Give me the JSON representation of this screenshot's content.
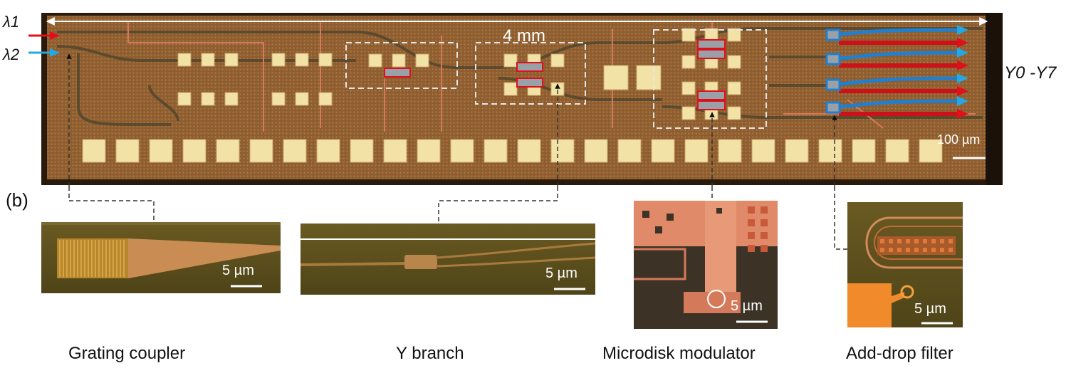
{
  "figure": {
    "input_labels": [
      "λ1",
      "λ2"
    ],
    "length_label": "4 mm",
    "output_label": "Y0 -Y7",
    "chip_scale": "100 µm",
    "panel_label": "(b)",
    "insets": [
      {
        "caption": "Grating coupler",
        "scale": "5 µm"
      },
      {
        "caption": "Y branch",
        "scale": "5 µm"
      },
      {
        "caption": "Microdisk modulator",
        "scale": "5 µm"
      },
      {
        "caption": "Add-drop filter",
        "scale": "5 µm"
      }
    ]
  },
  "colors": {
    "chip": "#8a5a2c",
    "pad": "#f3e2a6",
    "red_arrow": "#e0101a",
    "blue_arrow": "#23a8e6",
    "waveguide": "#5a4a30"
  }
}
